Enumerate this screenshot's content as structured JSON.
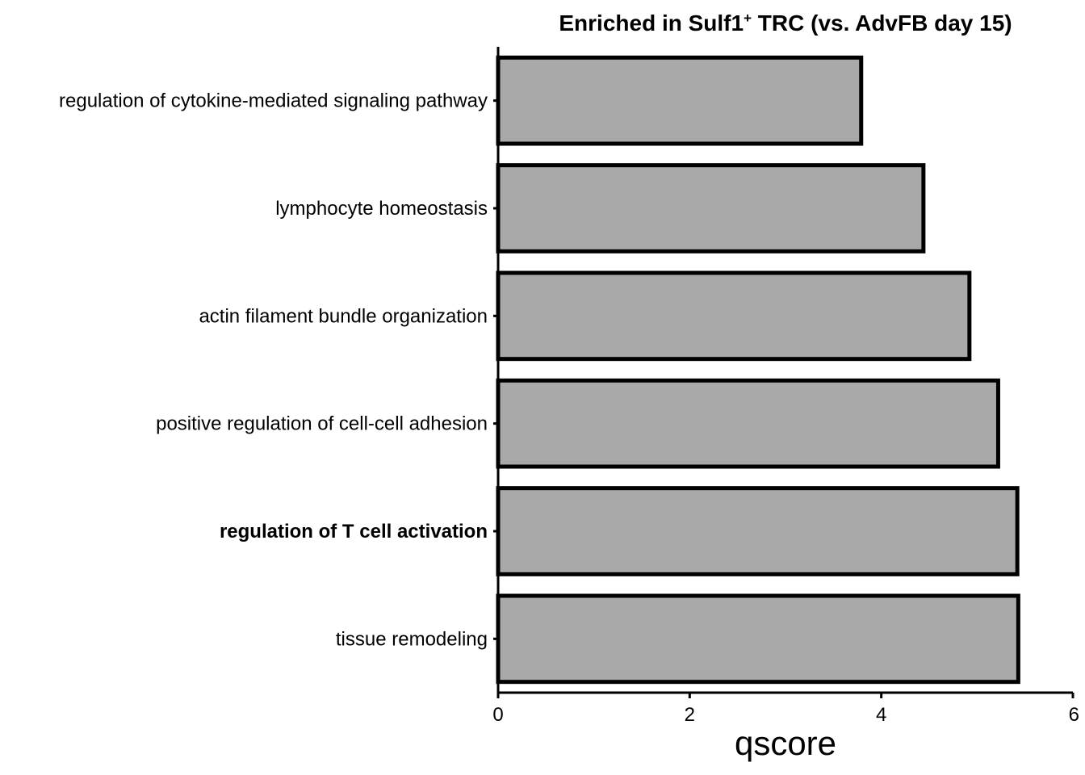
{
  "chart_data": {
    "type": "bar",
    "orientation": "horizontal",
    "title": "Enriched in Sulf1",
    "title_superscript": "+",
    "title_suffix": " TRC (vs. AdvFB day 15)",
    "categories": [
      "regulation of cytokine-mediated signaling pathway",
      "lymphocyte homeostasis",
      "actin filament bundle organization",
      "positive regulation of cell-cell adhesion",
      "regulation of T cell activation",
      "tissue remodeling"
    ],
    "bold_categories": [
      "regulation of T cell activation"
    ],
    "values": [
      3.79,
      4.44,
      4.92,
      5.22,
      5.42,
      5.43
    ],
    "xlabel": "qscore",
    "ylabel": "",
    "xlim": [
      0,
      6
    ],
    "xticks": [
      "0",
      "2",
      "4",
      "6"
    ],
    "bar_color": "#a9a9a9",
    "bar_outline_color": "#000000",
    "grid": false,
    "legend": "none"
  }
}
